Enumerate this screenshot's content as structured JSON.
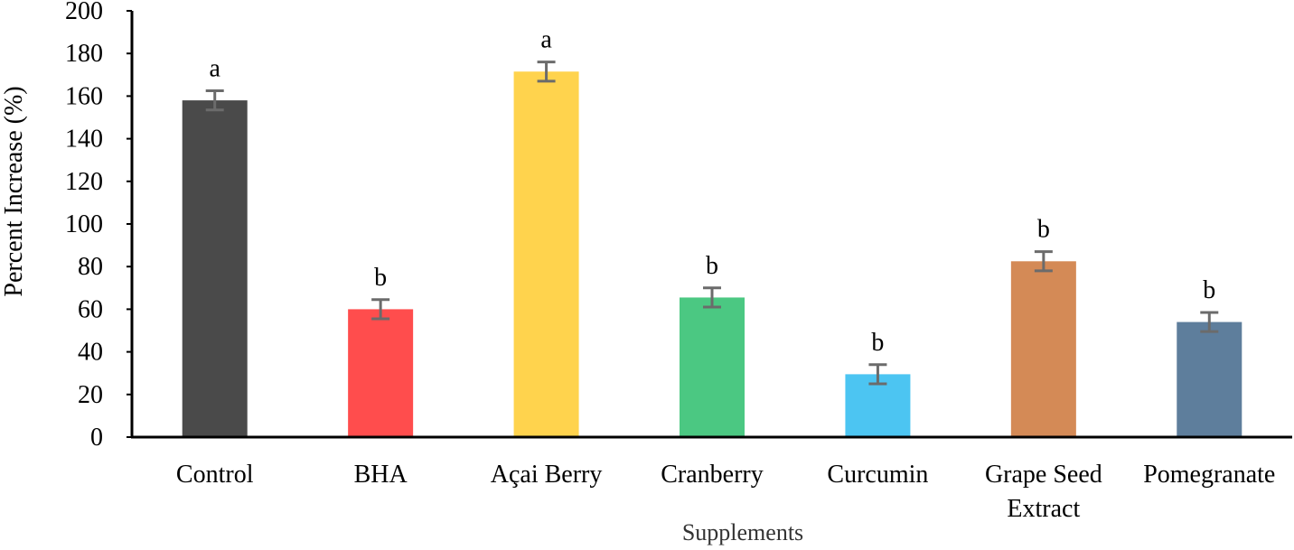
{
  "chart_data": {
    "type": "bar",
    "title": "",
    "xlabel": "Supplements",
    "ylabel": "Percent Increase (%)",
    "ylim": [
      0,
      200
    ],
    "yticks": [
      0,
      20,
      40,
      60,
      80,
      100,
      120,
      140,
      160,
      180,
      200
    ],
    "ytick_labels": [
      "0",
      "20",
      "40",
      "60",
      "80",
      "100",
      "120",
      "140",
      "160",
      "180",
      "200"
    ],
    "grid": false,
    "legend": "none",
    "categories": [
      [
        "Control"
      ],
      [
        "BHA"
      ],
      [
        "Açai Berry"
      ],
      [
        "Cranberry"
      ],
      [
        "Curcumin"
      ],
      [
        "Grape Seed",
        "Extract"
      ],
      [
        "Pomegranate"
      ]
    ],
    "values": [
      158,
      60,
      171.5,
      65.5,
      29.5,
      82.5,
      54
    ],
    "errors": [
      4.5,
      4.5,
      4.5,
      4.5,
      4.5,
      4.5,
      4.5
    ],
    "significance": [
      "a",
      "b",
      "a",
      "b",
      "b",
      "b",
      "b"
    ],
    "colors": [
      "#4a4a4a",
      "#ff4d4d",
      "#ffd34d",
      "#4bc882",
      "#4cc5f2",
      "#d48a56",
      "#5e7e9c"
    ],
    "error_color": "#6b6b6b",
    "axis_color": "#000000"
  }
}
